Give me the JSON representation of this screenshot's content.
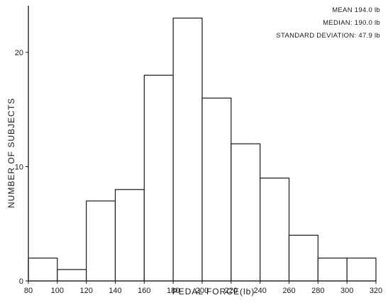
{
  "chart_data": {
    "type": "bar",
    "bin_edges": [
      80,
      100,
      120,
      140,
      160,
      180,
      200,
      220,
      240,
      260,
      280,
      300,
      320
    ],
    "values": [
      2,
      1,
      7,
      8,
      18,
      23,
      16,
      12,
      9,
      4,
      2,
      2
    ],
    "xlabel": "PEDAL FORCE(lb)",
    "ylabel": "NUMBER OF SUBJECTS",
    "xlim": [
      80,
      320
    ],
    "ylim": [
      0,
      24
    ],
    "x_tick_labels": [
      "80",
      "100",
      "120",
      "140",
      "160",
      "180",
      "200",
      "220",
      "240",
      "260",
      "280",
      "300",
      "320"
    ],
    "y_tick_labels": [
      "0",
      "10",
      "20"
    ],
    "y_tick_values": [
      0,
      10,
      20
    ],
    "annotations": [
      "MEAN 194.0 lb",
      "MEDIAN: 190.0 lb",
      "STANDARD DEVIATION: 47.9 lb"
    ],
    "grid": false,
    "colors": {
      "bar_fill": "#ffffff",
      "bar_edge": "#1a1a1a",
      "axis": "#1a1a1a"
    }
  }
}
